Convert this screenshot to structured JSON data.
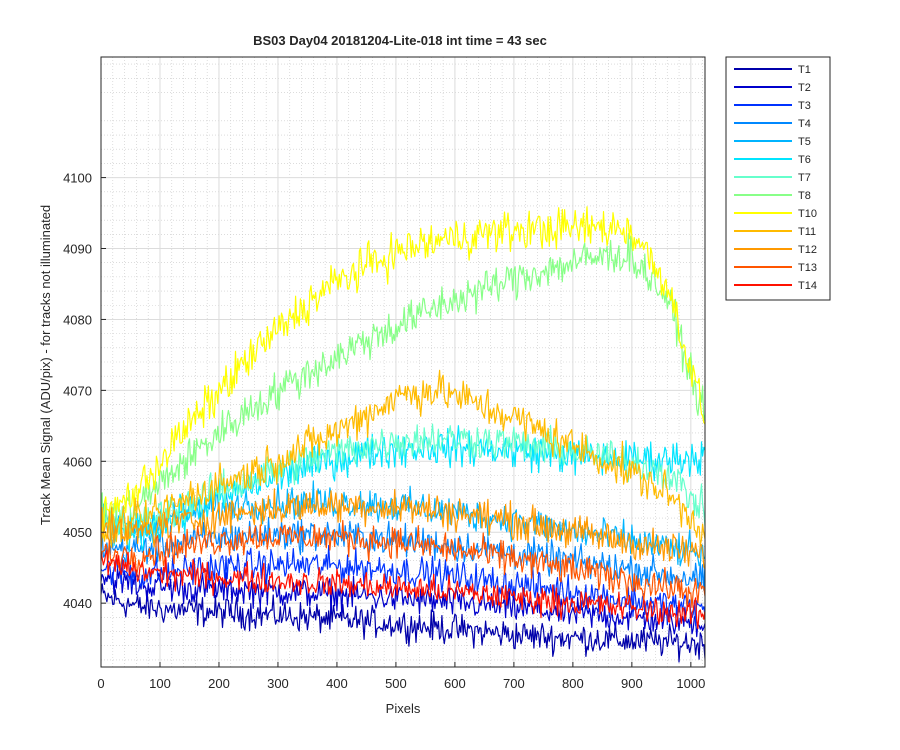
{
  "chart_data": {
    "type": "line",
    "title": "BS03 Day04 20181204-Lite-018 int time = 43 sec",
    "xlabel": "Pixels",
    "ylabel": "Track Mean Signal (ADU/pix) - for tracks not illuminated",
    "xlim": [
      0,
      1024
    ],
    "ylim": [
      4031,
      4117
    ],
    "xticks": [
      0,
      100,
      200,
      300,
      400,
      500,
      600,
      700,
      800,
      900,
      1000
    ],
    "yticks": [
      4040,
      4050,
      4060,
      4070,
      4080,
      4090,
      4100
    ],
    "grid": true,
    "minor_grid": true,
    "legend_position": "outside top-right",
    "x_step": 64,
    "series": [
      {
        "name": "T1",
        "color": "#0000aa",
        "noise": 1.5,
        "values": [
          4041,
          4039.5,
          4039,
          4038.8,
          4038.5,
          4038.2,
          4037.8,
          4037.4,
          4037,
          4036.5,
          4036,
          4035.5,
          4035.2,
          4035,
          4034.7,
          4034.5,
          4034.3
        ]
      },
      {
        "name": "T2",
        "color": "#0000cc",
        "noise": 1.5,
        "values": [
          4044,
          4042.5,
          4042.2,
          4042,
          4041.8,
          4041.6,
          4041.3,
          4041,
          4040.6,
          4040.2,
          4039.8,
          4039.3,
          4038.8,
          4038.3,
          4038,
          4037.6,
          4037.3
        ]
      },
      {
        "name": "T3",
        "color": "#0033ff",
        "noise": 1.6,
        "values": [
          4045,
          4044,
          4044.5,
          4045,
          4045.3,
          4045.4,
          4045.3,
          4045,
          4044.5,
          4044,
          4043.3,
          4042.6,
          4042,
          4041.2,
          4040.4,
          4039.8,
          4039
        ]
      },
      {
        "name": "T4",
        "color": "#0088ff",
        "noise": 1.6,
        "values": [
          4048,
          4047.5,
          4048.5,
          4049.2,
          4049.6,
          4049.7,
          4049.6,
          4049.3,
          4048.8,
          4048.3,
          4047.7,
          4047,
          4046.2,
          4045.5,
          4044.8,
          4044,
          4043.2
        ]
      },
      {
        "name": "T5",
        "color": "#00b4ff",
        "noise": 1.7,
        "values": [
          4052,
          4051,
          4052.5,
          4053.5,
          4054,
          4054.2,
          4054.2,
          4054,
          4053.6,
          4053,
          4052.3,
          4051.5,
          4050.6,
          4049.7,
          4048.8,
          4047.8,
          4046.8
        ]
      },
      {
        "name": "T6",
        "color": "#00e5ff",
        "noise": 1.8,
        "values": [
          4050,
          4050,
          4052,
          4054.5,
          4056.5,
          4058.5,
          4060,
          4061.2,
          4061.8,
          4062,
          4061.8,
          4061.4,
          4061,
          4060.5,
          4060.3,
          4060.3,
          4060.8
        ]
      },
      {
        "name": "T7",
        "color": "#66ffcc",
        "noise": 1.8,
        "values": [
          4051,
          4051,
          4053.5,
          4055.5,
          4057.5,
          4059.3,
          4061,
          4062.2,
          4063,
          4063.2,
          4063,
          4062.5,
          4061.8,
          4061,
          4060,
          4058.5,
          4053
        ]
      },
      {
        "name": "T8",
        "color": "#88ff88",
        "noise": 1.9,
        "values": [
          4052,
          4054,
          4059,
          4063.5,
          4067.5,
          4071,
          4074,
          4077,
          4079.5,
          4082,
          4084,
          4085.8,
          4087.3,
          4088.6,
          4089.2,
          4083,
          4066
        ]
      },
      {
        "name": "T10",
        "color": "#ffff00",
        "noise": 2,
        "values": [
          4052,
          4056,
          4063,
          4069,
          4075,
          4080,
          4084.5,
          4087.5,
          4089.8,
          4091.2,
          4092,
          4092.5,
          4092.8,
          4093,
          4092.8,
          4085,
          4066
        ]
      },
      {
        "name": "T11",
        "color": "#ffbb00",
        "noise": 1.9,
        "values": [
          4050,
          4051.5,
          4054,
          4056.5,
          4058.5,
          4061,
          4063.5,
          4066.5,
          4069.5,
          4070,
          4068,
          4066,
          4063.5,
          4061,
          4058.5,
          4055.5,
          4050
        ]
      },
      {
        "name": "T12",
        "color": "#ff9900",
        "noise": 1.7,
        "values": [
          4050,
          4050,
          4051.2,
          4052.2,
          4053,
          4053.5,
          4053.8,
          4053.8,
          4053.5,
          4053,
          4052.3,
          4051.5,
          4050.6,
          4049.6,
          4048.6,
          4047.6,
          4046.8
        ]
      },
      {
        "name": "T13",
        "color": "#ff5500",
        "noise": 1.6,
        "values": [
          4047,
          4046.8,
          4048,
          4048.8,
          4049.3,
          4049.4,
          4049.3,
          4049,
          4048.5,
          4047.8,
          4047,
          4046.2,
          4045.2,
          4044.2,
          4043.2,
          4042.2,
          4041.3
        ]
      },
      {
        "name": "T14",
        "color": "#ff1100",
        "noise": 1.4,
        "values": [
          4046,
          4044.5,
          4044,
          4043.7,
          4043.4,
          4043.1,
          4042.8,
          4042.5,
          4042.1,
          4041.7,
          4041.3,
          4040.8,
          4040.3,
          4039.8,
          4039.3,
          4038.8,
          4038.3
        ]
      }
    ]
  }
}
